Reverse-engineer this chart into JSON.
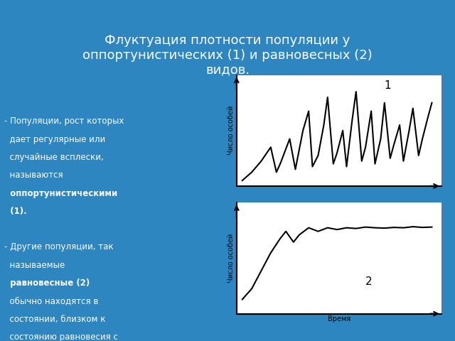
{
  "title": "Флуктуация плотности популяции у\nоппортунистических (1) и равновесных (2)\nвидов.",
  "bg_color": "#2E86C1",
  "text_color": "white",
  "chart_bg": "white",
  "ylabel": "Число особей",
  "xlabel": "Время",
  "bullet1_plain": "- Популяции, рост которых\n  дает регулярные или\n  случайные всплески,\n  называются\n  ",
  "bullet1_bold": "оппортунистическими\n  (1).",
  "bullet2_plain": "- Другие популяции, так\n  называемые\n  ",
  "bullet2_bold": "равновесные (2)",
  "bullet2_rest": "\n  обычно находятся в\n  состоянии, близком к\n  состоянию равновесия с\n  ресурсами, а значения\n  их плотности гораздо\n  более устойчивы.",
  "curve1_x": [
    0,
    0.5,
    1.0,
    1.5,
    1.8,
    2.0,
    2.5,
    2.8,
    3.2,
    3.5,
    3.7,
    4.0,
    4.3,
    4.5,
    4.8,
    5.0,
    5.3,
    5.5,
    5.8,
    6.0,
    6.3,
    6.5,
    6.8,
    7.0,
    7.3,
    7.5,
    7.8,
    8.0,
    8.3,
    8.5,
    8.8,
    9.0,
    9.3,
    9.5,
    9.8,
    10.0
  ],
  "curve1_y": [
    0,
    0.3,
    0.7,
    1.2,
    0.3,
    0.6,
    1.5,
    0.4,
    1.8,
    2.5,
    0.5,
    0.9,
    2.0,
    3.0,
    0.6,
    1.0,
    1.8,
    0.5,
    2.2,
    3.2,
    0.7,
    1.2,
    2.5,
    0.6,
    1.5,
    2.8,
    0.8,
    1.3,
    2.0,
    0.7,
    1.8,
    2.6,
    0.9,
    1.5,
    2.3,
    2.8
  ],
  "curve2_x": [
    0,
    0.5,
    1.0,
    1.5,
    2.0,
    2.3,
    2.7,
    3.0,
    3.5,
    4.0,
    4.5,
    5.0,
    5.5,
    6.0,
    6.5,
    7.0,
    7.5,
    8.0,
    8.5,
    9.0,
    9.5,
    10.0
  ],
  "curve2_y": [
    0.1,
    0.4,
    0.9,
    1.4,
    1.8,
    2.0,
    1.7,
    1.9,
    2.1,
    2.0,
    2.1,
    2.05,
    2.1,
    2.08,
    2.12,
    2.1,
    2.09,
    2.11,
    2.1,
    2.13,
    2.11,
    2.12
  ],
  "label1": "1",
  "label2": "2"
}
